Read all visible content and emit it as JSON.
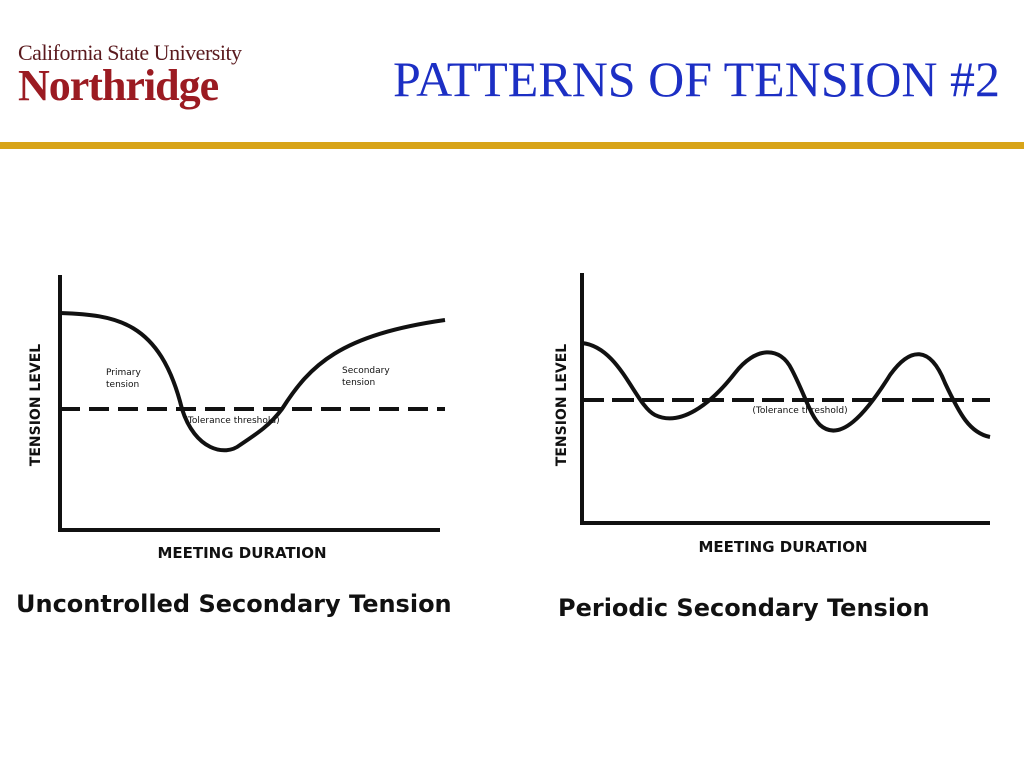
{
  "header": {
    "logo_line1": "California State University",
    "logo_line2": "Northridge",
    "title": "PATTERNS OF TENSION #2"
  },
  "colors": {
    "title": "#1c2fc4",
    "rule": "#d8a418",
    "logo": "#9b1b22"
  },
  "left_diagram": {
    "ylabel": "TENSION LEVEL",
    "xlabel": "MEETING DURATION",
    "label_primary_1": "Primary",
    "label_primary_2": "tension",
    "label_secondary_1": "Secondary",
    "label_secondary_2": "tension",
    "threshold_label": "(Tolerance threshold)",
    "caption": "Uncontrolled Secondary Tension"
  },
  "right_diagram": {
    "ylabel": "TENSION LEVEL",
    "xlabel": "MEETING DURATION",
    "threshold_label": "(Tolerance threshold)",
    "caption": "Periodic Secondary Tension"
  }
}
